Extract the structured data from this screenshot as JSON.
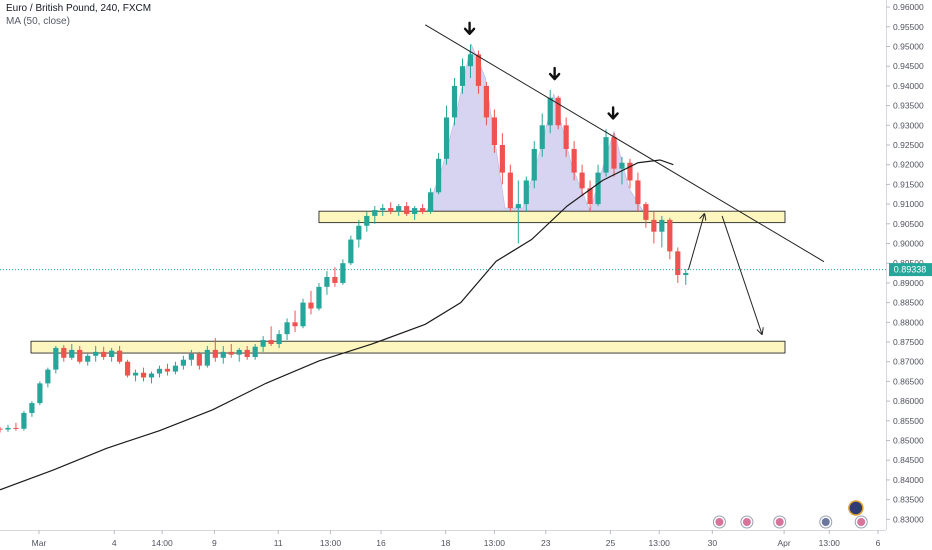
{
  "header": {
    "symbol_line": "Euro / British Pound, 240, FXCM",
    "indicator_line": "MA (50, close)"
  },
  "chart_data": {
    "type": "candlestick",
    "symbol": "Euro / British Pound",
    "timeframe": "240",
    "source": "FXCM",
    "y_axis": {
      "ticks": [
        "0.96000",
        "0.95500",
        "0.95000",
        "0.94500",
        "0.94000",
        "0.93500",
        "0.93000",
        "0.92500",
        "0.92000",
        "0.91500",
        "0.91000",
        "0.90500",
        "0.90000",
        "0.89500",
        "0.89000",
        "0.88500",
        "0.88000",
        "0.87500",
        "0.87000",
        "0.86500",
        "0.86000",
        "0.85500",
        "0.85000",
        "0.84500",
        "0.84000",
        "0.83500",
        "0.83000"
      ],
      "range": [
        0.8278,
        0.9618
      ]
    },
    "x_axis": {
      "labels": [
        "Mar",
        "4",
        "14:00",
        "9",
        "11",
        "13:00",
        "16",
        "18",
        "13:00",
        "23",
        "25",
        "13:00",
        "30",
        "Apr",
        "13:00",
        "6"
      ],
      "range": [
        0,
        100
      ]
    },
    "last_price": "0.89338",
    "colors": {
      "up": "#26a69a",
      "down": "#ef5350",
      "ma": "#1c1c1c",
      "zone_fill": "#fdf5b4",
      "zone_stroke": "#2b2b2b",
      "pattern_fill": "#c9c5ee",
      "last_price": "#26a69a",
      "axis_text": "#50535e"
    },
    "moving_average": {
      "name": "MA (50, close)",
      "points": [
        [
          0,
          0.8375
        ],
        [
          6,
          0.8425
        ],
        [
          12,
          0.848
        ],
        [
          18,
          0.8525
        ],
        [
          24,
          0.8578
        ],
        [
          30,
          0.8645
        ],
        [
          36,
          0.8702
        ],
        [
          42,
          0.8745
        ],
        [
          48,
          0.8795
        ],
        [
          52,
          0.885
        ],
        [
          56,
          0.8955
        ],
        [
          60,
          0.901
        ],
        [
          64,
          0.9095
        ],
        [
          68,
          0.916
        ],
        [
          72,
          0.9205
        ],
        [
          74.5,
          0.9212
        ],
        [
          76,
          0.92
        ]
      ]
    },
    "ohlc": [
      [
        0,
        0.853,
        0.8535,
        0.852,
        0.8528
      ],
      [
        0.9,
        0.8528,
        0.854,
        0.8522,
        0.8532
      ],
      [
        1.8,
        0.8532,
        0.8545,
        0.8525,
        0.853
      ],
      [
        2.7,
        0.853,
        0.8575,
        0.8525,
        0.857
      ],
      [
        3.6,
        0.857,
        0.86,
        0.856,
        0.8595
      ],
      [
        4.5,
        0.8595,
        0.865,
        0.859,
        0.8645
      ],
      [
        5.4,
        0.8645,
        0.8685,
        0.8635,
        0.868
      ],
      [
        6.3,
        0.868,
        0.874,
        0.867,
        0.8735
      ],
      [
        7.2,
        0.8735,
        0.8742,
        0.87,
        0.871
      ],
      [
        8.1,
        0.871,
        0.8745,
        0.8705,
        0.873
      ],
      [
        9.0,
        0.873,
        0.874,
        0.8695,
        0.87
      ],
      [
        9.9,
        0.87,
        0.872,
        0.869,
        0.8715
      ],
      [
        10.8,
        0.8715,
        0.874,
        0.87,
        0.8725
      ],
      [
        11.7,
        0.8725,
        0.8738,
        0.8705,
        0.8712
      ],
      [
        12.6,
        0.8712,
        0.8735,
        0.87,
        0.8728
      ],
      [
        13.5,
        0.8728,
        0.874,
        0.8695,
        0.87
      ],
      [
        14.4,
        0.87,
        0.8705,
        0.866,
        0.8665
      ],
      [
        15.3,
        0.8665,
        0.868,
        0.865,
        0.8672
      ],
      [
        16.2,
        0.8672,
        0.8685,
        0.865,
        0.866
      ],
      [
        17.1,
        0.866,
        0.8675,
        0.8645,
        0.867
      ],
      [
        18.0,
        0.867,
        0.869,
        0.866,
        0.8682
      ],
      [
        18.9,
        0.8682,
        0.8695,
        0.8665,
        0.8675
      ],
      [
        19.8,
        0.8675,
        0.87,
        0.8668,
        0.869
      ],
      [
        20.7,
        0.869,
        0.8715,
        0.868,
        0.8705
      ],
      [
        21.6,
        0.8705,
        0.873,
        0.869,
        0.872
      ],
      [
        22.5,
        0.872,
        0.8725,
        0.868,
        0.869
      ],
      [
        23.4,
        0.869,
        0.874,
        0.8685,
        0.873
      ],
      [
        24.3,
        0.873,
        0.876,
        0.87,
        0.871
      ],
      [
        25.2,
        0.871,
        0.874,
        0.8695,
        0.8725
      ],
      [
        26.1,
        0.8725,
        0.8745,
        0.871,
        0.8718
      ],
      [
        27.0,
        0.8718,
        0.8735,
        0.87,
        0.873
      ],
      [
        27.9,
        0.873,
        0.874,
        0.8705,
        0.8712
      ],
      [
        28.8,
        0.8712,
        0.8745,
        0.8705,
        0.8738
      ],
      [
        29.7,
        0.8738,
        0.8765,
        0.8725,
        0.8755
      ],
      [
        30.6,
        0.8755,
        0.879,
        0.874,
        0.8745
      ],
      [
        31.5,
        0.8745,
        0.878,
        0.8735,
        0.877
      ],
      [
        32.4,
        0.877,
        0.881,
        0.8755,
        0.88
      ],
      [
        33.3,
        0.88,
        0.883,
        0.8775,
        0.879
      ],
      [
        34.2,
        0.879,
        0.886,
        0.8785,
        0.885
      ],
      [
        35.1,
        0.885,
        0.888,
        0.882,
        0.8835
      ],
      [
        36.0,
        0.8835,
        0.89,
        0.883,
        0.889
      ],
      [
        36.9,
        0.889,
        0.893,
        0.887,
        0.8915
      ],
      [
        37.8,
        0.8915,
        0.894,
        0.889,
        0.89
      ],
      [
        38.7,
        0.89,
        0.896,
        0.8895,
        0.895
      ],
      [
        39.6,
        0.895,
        0.902,
        0.8945,
        0.901
      ],
      [
        40.5,
        0.901,
        0.906,
        0.899,
        0.9045
      ],
      [
        41.4,
        0.9045,
        0.908,
        0.903,
        0.907
      ],
      [
        42.3,
        0.907,
        0.9095,
        0.905,
        0.9085
      ],
      [
        43.2,
        0.9085,
        0.91,
        0.907,
        0.909
      ],
      [
        44.1,
        0.909,
        0.9105,
        0.9075,
        0.9082
      ],
      [
        45.0,
        0.9082,
        0.91,
        0.907,
        0.9095
      ],
      [
        45.9,
        0.9095,
        0.9105,
        0.907,
        0.9075
      ],
      [
        46.8,
        0.9075,
        0.9095,
        0.906,
        0.909
      ],
      [
        47.7,
        0.909,
        0.91,
        0.9075,
        0.908
      ],
      [
        48.6,
        0.908,
        0.914,
        0.9075,
        0.913
      ],
      [
        49.5,
        0.913,
        0.923,
        0.9125,
        0.9215
      ],
      [
        50.4,
        0.9215,
        0.935,
        0.92,
        0.932
      ],
      [
        51.3,
        0.932,
        0.942,
        0.93,
        0.94
      ],
      [
        52.2,
        0.94,
        0.947,
        0.938,
        0.945
      ],
      [
        53.1,
        0.945,
        0.9505,
        0.942,
        0.948
      ],
      [
        54.0,
        0.948,
        0.949,
        0.938,
        0.94
      ],
      [
        54.9,
        0.94,
        0.941,
        0.93,
        0.932
      ],
      [
        55.8,
        0.932,
        0.934,
        0.923,
        0.925
      ],
      [
        56.7,
        0.925,
        0.928,
        0.915,
        0.918
      ],
      [
        57.6,
        0.918,
        0.92,
        0.908,
        0.909
      ],
      [
        58.5,
        0.909,
        0.916,
        0.9,
        0.91
      ],
      [
        59.4,
        0.91,
        0.917,
        0.908,
        0.916
      ],
      [
        60.3,
        0.916,
        0.926,
        0.914,
        0.924
      ],
      [
        61.2,
        0.924,
        0.933,
        0.922,
        0.93
      ],
      [
        62.1,
        0.93,
        0.939,
        0.928,
        0.937
      ],
      [
        63.0,
        0.937,
        0.9375,
        0.929,
        0.93
      ],
      [
        63.9,
        0.93,
        0.932,
        0.922,
        0.924
      ],
      [
        64.8,
        0.924,
        0.926,
        0.916,
        0.918
      ],
      [
        65.7,
        0.918,
        0.92,
        0.912,
        0.914
      ],
      [
        66.6,
        0.914,
        0.916,
        0.908,
        0.91
      ],
      [
        67.5,
        0.91,
        0.92,
        0.9095,
        0.918
      ],
      [
        68.4,
        0.918,
        0.929,
        0.917,
        0.927
      ],
      [
        69.3,
        0.927,
        0.928,
        0.917,
        0.919
      ],
      [
        70.2,
        0.919,
        0.922,
        0.915,
        0.9205
      ],
      [
        71.1,
        0.9205,
        0.9215,
        0.914,
        0.916
      ],
      [
        72.0,
        0.916,
        0.918,
        0.908,
        0.91
      ],
      [
        72.9,
        0.91,
        0.9105,
        0.904,
        0.906
      ],
      [
        73.8,
        0.906,
        0.908,
        0.9,
        0.903
      ],
      [
        74.7,
        0.903,
        0.907,
        0.899,
        0.906
      ],
      [
        75.6,
        0.906,
        0.9065,
        0.896,
        0.898
      ],
      [
        76.5,
        0.898,
        0.899,
        0.89,
        0.892
      ],
      [
        77.4,
        0.892,
        0.8935,
        0.8895,
        0.8925
      ]
    ],
    "zones": [
      {
        "x1": 36.0,
        "x2": 88.6,
        "y_low": 0.9053,
        "y_high": 0.9082
      },
      {
        "x1": 3.5,
        "x2": 88.6,
        "y_low": 0.8722,
        "y_high": 0.8752
      }
    ],
    "trendline": {
      "x1": 48.0,
      "y1": 0.9555,
      "x2": 93.0,
      "y2": 0.8954
    },
    "projection": [
      [
        77.7,
        0.8933
      ],
      [
        79.5,
        0.9075
      ],
      [
        81.5,
        0.907
      ],
      [
        86.0,
        0.877
      ]
    ],
    "pattern": {
      "name": "head and shoulders",
      "points": [
        [
          48.2,
          0.9082
        ],
        [
          50.0,
          0.92
        ],
        [
          51.5,
          0.933
        ],
        [
          53.2,
          0.9505
        ],
        [
          54.8,
          0.942
        ],
        [
          57.0,
          0.909
        ],
        [
          59.0,
          0.909
        ],
        [
          61.3,
          0.926
        ],
        [
          62.5,
          0.938
        ],
        [
          64.5,
          0.92
        ],
        [
          66.6,
          0.9082
        ],
        [
          68.0,
          0.919
        ],
        [
          69.3,
          0.9285
        ],
        [
          71.0,
          0.914
        ],
        [
          72.6,
          0.9082
        ]
      ]
    },
    "arrow_markers": [
      [
        53.0,
        0.9545
      ],
      [
        62.6,
        0.943
      ],
      [
        69.2,
        0.933
      ]
    ],
    "moving_average_series": "MA (50, close)"
  }
}
